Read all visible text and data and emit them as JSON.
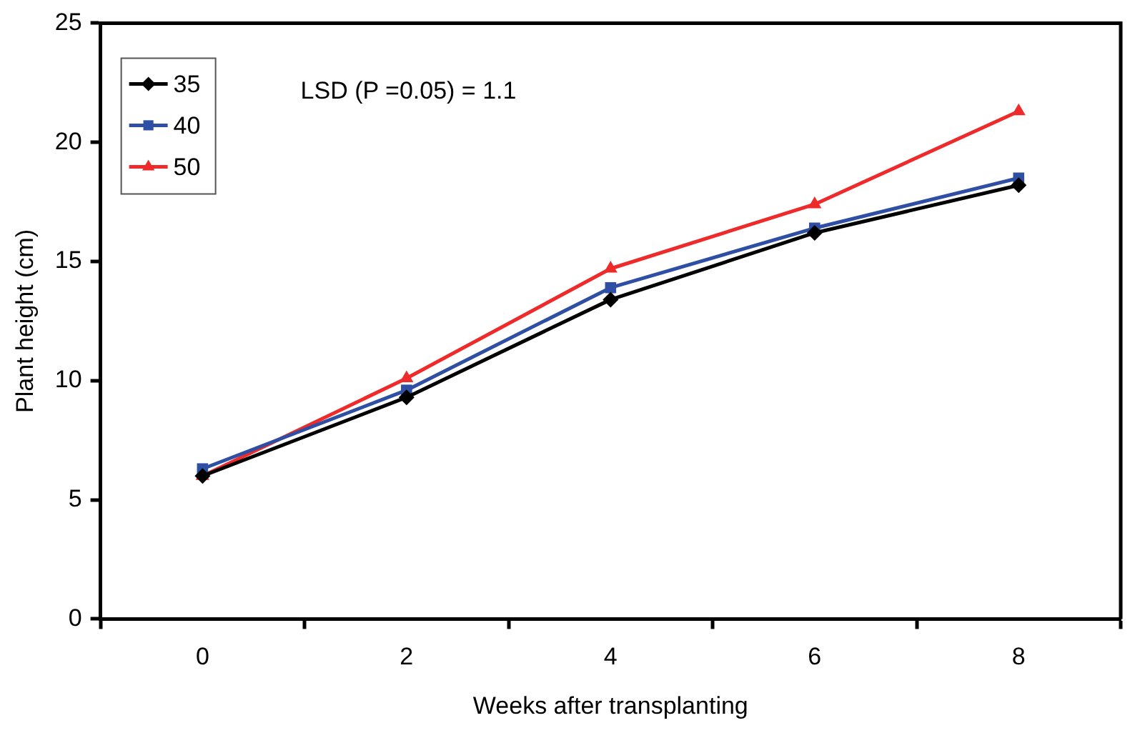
{
  "chart_data": {
    "type": "line",
    "xlabel": "Weeks after transplanting",
    "ylabel": "Plant height (cm)",
    "categories": [
      "0",
      "2",
      "4",
      "6",
      "8"
    ],
    "series": [
      {
        "name": "35",
        "color": "#000000",
        "marker": "diamond",
        "values": [
          6.0,
          9.3,
          13.4,
          16.2,
          18.2
        ]
      },
      {
        "name": "40",
        "color": "#2e4fa3",
        "marker": "square",
        "values": [
          6.3,
          9.6,
          13.9,
          16.4,
          18.5
        ]
      },
      {
        "name": "50",
        "color": "#ee2a2a",
        "marker": "triangle",
        "values": [
          6.0,
          10.1,
          14.7,
          17.4,
          21.3
        ]
      }
    ],
    "ylim": [
      0,
      25
    ],
    "yticks": [
      0,
      5,
      10,
      15,
      20,
      25
    ],
    "grid": false,
    "legend": "top left",
    "annotations": [
      "LSD (P =0.05) = 1.1"
    ]
  }
}
